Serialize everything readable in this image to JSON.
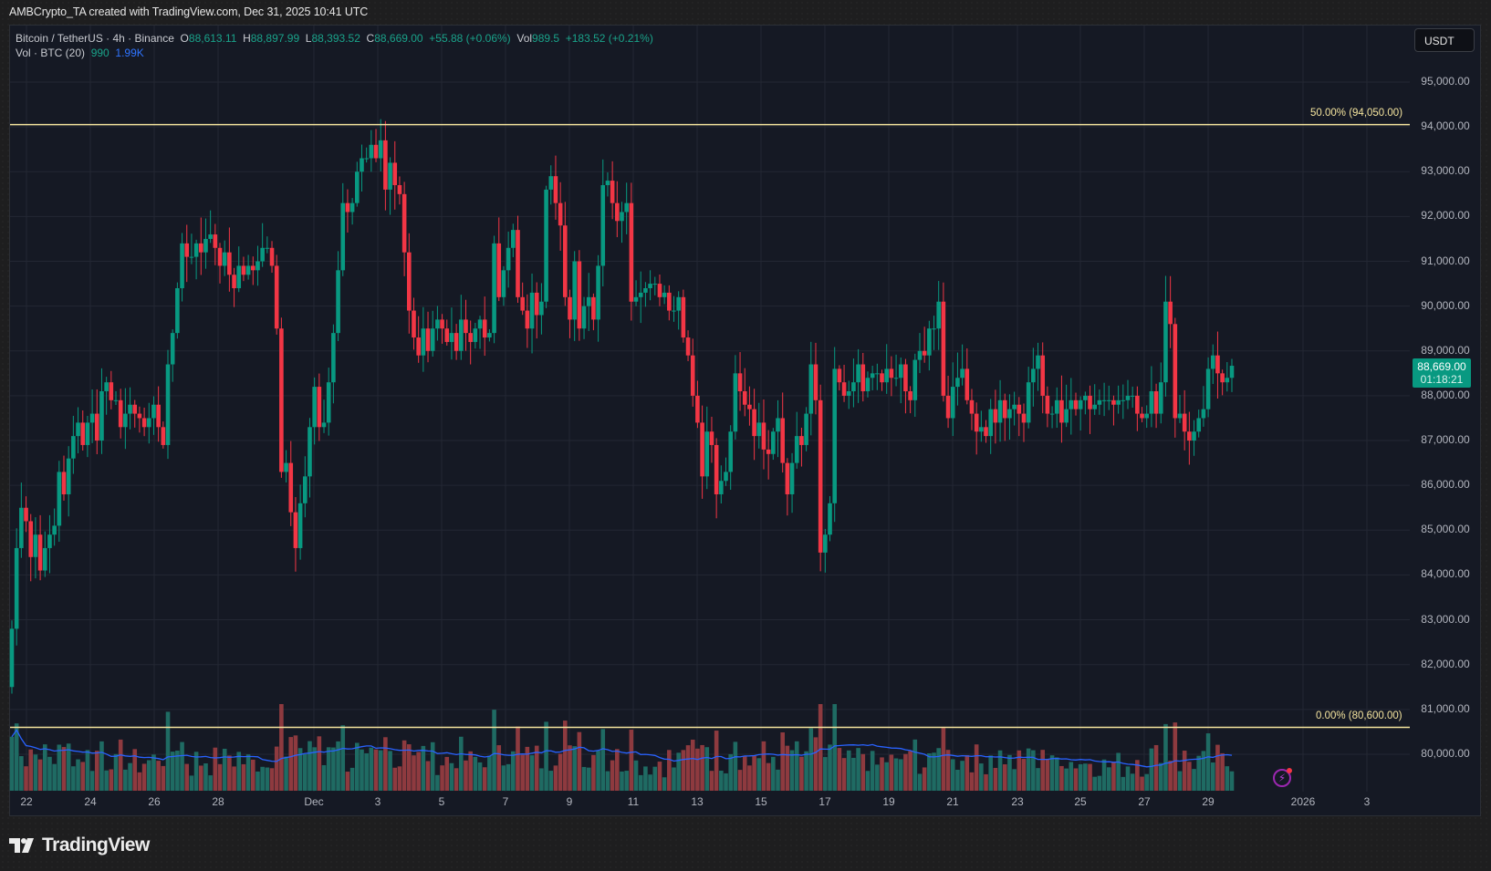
{
  "credit": "AMBCrypto_TA created with TradingView.com, Dec 31, 2025 10:41 UTC",
  "legend": {
    "symbol": "Bitcoin / TetherUS · 4h · Binance",
    "o_label": "O",
    "o": "88,613.11",
    "h_label": "H",
    "h": "88,897.99",
    "l_label": "L",
    "l": "88,393.52",
    "c_label": "C",
    "c": "88,669.00",
    "change": "+55.88 (+0.06%)",
    "vol_label": "Vol",
    "vol": "989.5",
    "vol_change": "+183.52 (+0.21%)",
    "vol_indicator": "Vol · BTC (20)",
    "vol_value": "990",
    "vol_ma": "1.99K"
  },
  "currency_button": "USDT",
  "last_price": {
    "price": "88,669.00",
    "countdown": "01:18:21"
  },
  "fib": {
    "upper_label": "50.00% (94,050.00)",
    "lower_label": "0.00% (80,600.00)"
  },
  "price_axis": [
    "95,000.00",
    "94,000.00",
    "93,000.00",
    "92,000.00",
    "91,000.00",
    "90,000.00",
    "89,000.00",
    "88,000.00",
    "87,000.00",
    "86,000.00",
    "85,000.00",
    "84,000.00",
    "83,000.00",
    "82,000.00",
    "81,000.00",
    "80,000.00"
  ],
  "time_axis": [
    "22",
    "24",
    "26",
    "28",
    "Dec",
    "3",
    "5",
    "7",
    "9",
    "11",
    "13",
    "15",
    "17",
    "19",
    "21",
    "23",
    "25",
    "27",
    "29",
    "2026",
    "3"
  ],
  "brand": "TradingView",
  "colors": {
    "up": "#089981",
    "down": "#f23645",
    "vol_up": "#1f6b63",
    "vol_down": "#8e3a3f",
    "fib": "#f4e49e",
    "ma": "#2962ff",
    "bg": "#151924"
  },
  "chart_data": {
    "type": "candlestick",
    "title": "Bitcoin / TetherUS · 4h · Binance",
    "interval": "4h",
    "xlabel": "",
    "ylabel": "USDT",
    "ylim": [
      79400,
      95600
    ],
    "x_ticks": [
      "22",
      "24",
      "26",
      "28",
      "Dec",
      "3",
      "5",
      "7",
      "9",
      "11",
      "13",
      "15",
      "17",
      "19",
      "21",
      "23",
      "25",
      "27",
      "29",
      "2026",
      "3"
    ],
    "horizontal_levels": [
      {
        "label": "50.00% (94,050.00)",
        "value": 94050
      },
      {
        "label": "0.00% (80,600.00)",
        "value": 80600
      }
    ],
    "last": {
      "open": 88613.11,
      "high": 88897.99,
      "low": 88393.52,
      "close": 88669.0,
      "volume": 989.5
    },
    "closes": [
      82800,
      84600,
      85500,
      85200,
      84400,
      84900,
      84100,
      84600,
      84900,
      85100,
      86300,
      85800,
      86600,
      87100,
      87400,
      86900,
      87400,
      87600,
      87000,
      88100,
      88300,
      87900,
      87900,
      87300,
      87600,
      87800,
      87600,
      87500,
      87300,
      87500,
      87800,
      87300,
      86900,
      88700,
      89400,
      90400,
      91400,
      91100,
      91100,
      91400,
      91200,
      91500,
      91600,
      91300,
      90900,
      91200,
      90700,
      90400,
      90900,
      90700,
      90900,
      90800,
      91000,
      91300,
      91300,
      90900,
      89500,
      86300,
      86500,
      85400,
      84600,
      85600,
      86200,
      87300,
      88200,
      87300,
      87400,
      88300,
      89400,
      90800,
      92300,
      92100,
      92300,
      93000,
      93300,
      93300,
      93600,
      93300,
      93700,
      92600,
      93200,
      92700,
      92500,
      91200,
      89900,
      89300,
      88900,
      89500,
      89000,
      89500,
      89700,
      89500,
      89200,
      89400,
      89000,
      89700,
      89400,
      89200,
      89500,
      89700,
      89300,
      89400,
      91400,
      90200,
      90800,
      91300,
      91700,
      90200,
      89900,
      89500,
      90300,
      89800,
      90100,
      92600,
      92900,
      92300,
      91800,
      90200,
      89700,
      91000,
      89500,
      90000,
      90200,
      89700,
      90900,
      92700,
      92800,
      92300,
      91900,
      92100,
      92300,
      90100,
      90200,
      90300,
      90400,
      90500,
      90500,
      90200,
      90300,
      89900,
      89900,
      90200,
      89300,
      88900,
      88000,
      87400,
      86200,
      87200,
      86900,
      85800,
      86100,
      86300,
      87200,
      88500,
      88100,
      87800,
      87700,
      87100,
      87400,
      86800,
      86700,
      87200,
      87500,
      86500,
      85800,
      86500,
      87100,
      86900,
      87600,
      88700,
      87900,
      84500,
      84900,
      85600,
      88600,
      88300,
      88000,
      88100,
      88300,
      88700,
      88100,
      88400,
      88500,
      88500,
      88300,
      88600,
      88400,
      88400,
      88700,
      88100,
      87900,
      88800,
      89000,
      88900,
      89500,
      89500,
      90100,
      88000,
      87500,
      88200,
      88400,
      88600,
      87900,
      87600,
      87200,
      87300,
      87100,
      87700,
      87400,
      87900,
      87500,
      87700,
      87800,
      87600,
      87400,
      88300,
      88600,
      88900,
      88000,
      87600,
      87600,
      87900,
      87400,
      87700,
      87900,
      87700,
      87900,
      88000,
      87700,
      87800,
      87900,
      87900,
      87900,
      87800,
      87900,
      87900,
      88000,
      88000,
      87600,
      87500,
      87600,
      88100,
      87600,
      88300,
      90100,
      89600,
      87500,
      87600,
      87200,
      87000,
      87200,
      87500,
      87700,
      88600,
      88900,
      88500,
      88300,
      88400,
      88669
    ]
  }
}
